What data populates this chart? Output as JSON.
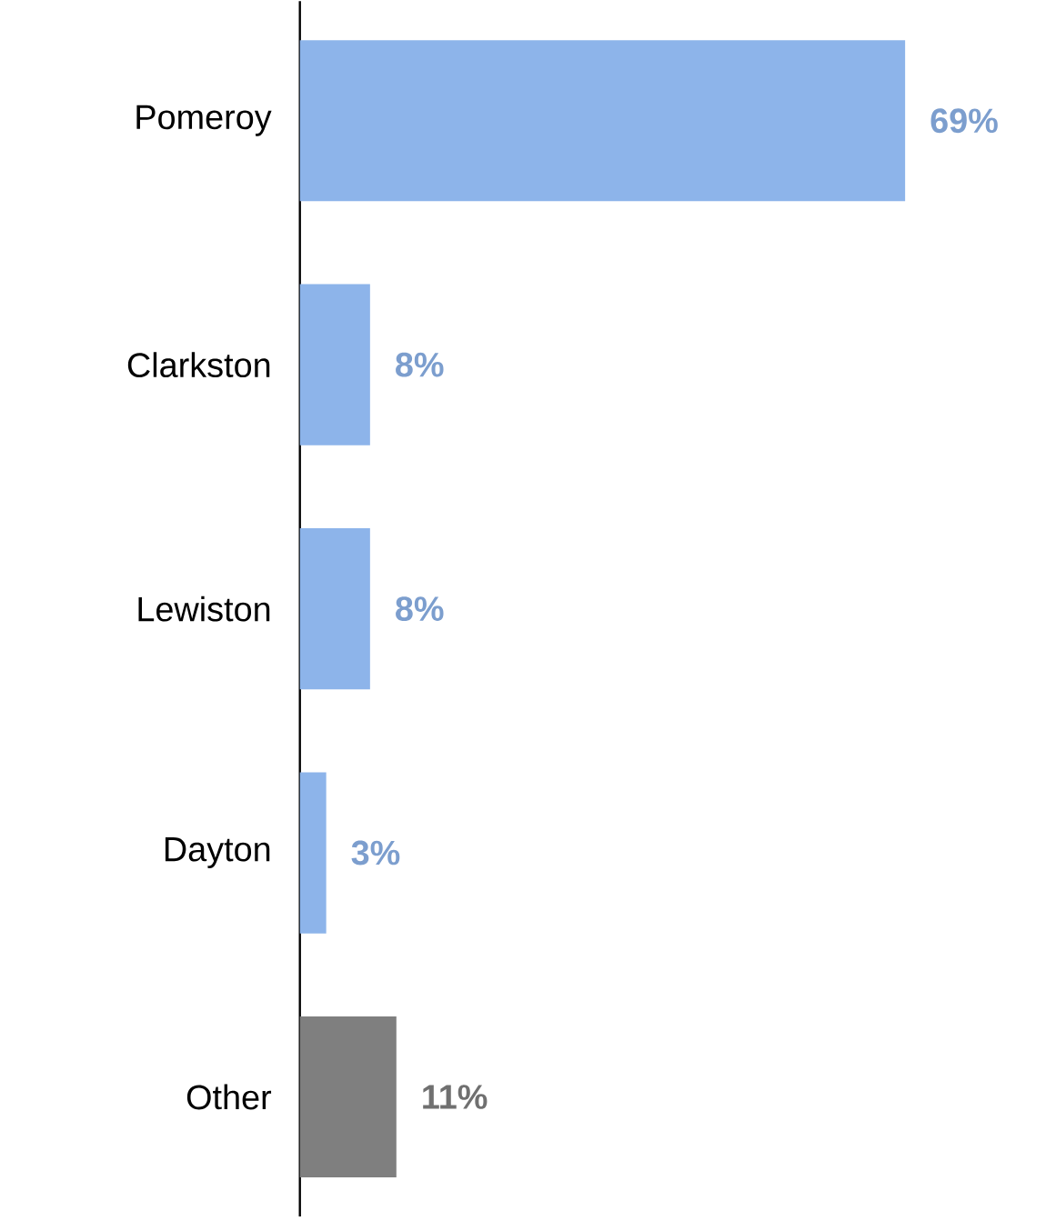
{
  "chart_data": {
    "type": "bar",
    "orientation": "horizontal",
    "categories": [
      "Pomeroy",
      "Clarkston",
      "Lewiston",
      "Dayton",
      "Other"
    ],
    "values": [
      69,
      8,
      8,
      3,
      11
    ],
    "colors": [
      "#8db4ea",
      "#8db4ea",
      "#8db4ea",
      "#8db4ea",
      "#7f7f7f"
    ],
    "value_labels": [
      "69%",
      "8%",
      "8%",
      "3%",
      "11%"
    ]
  }
}
